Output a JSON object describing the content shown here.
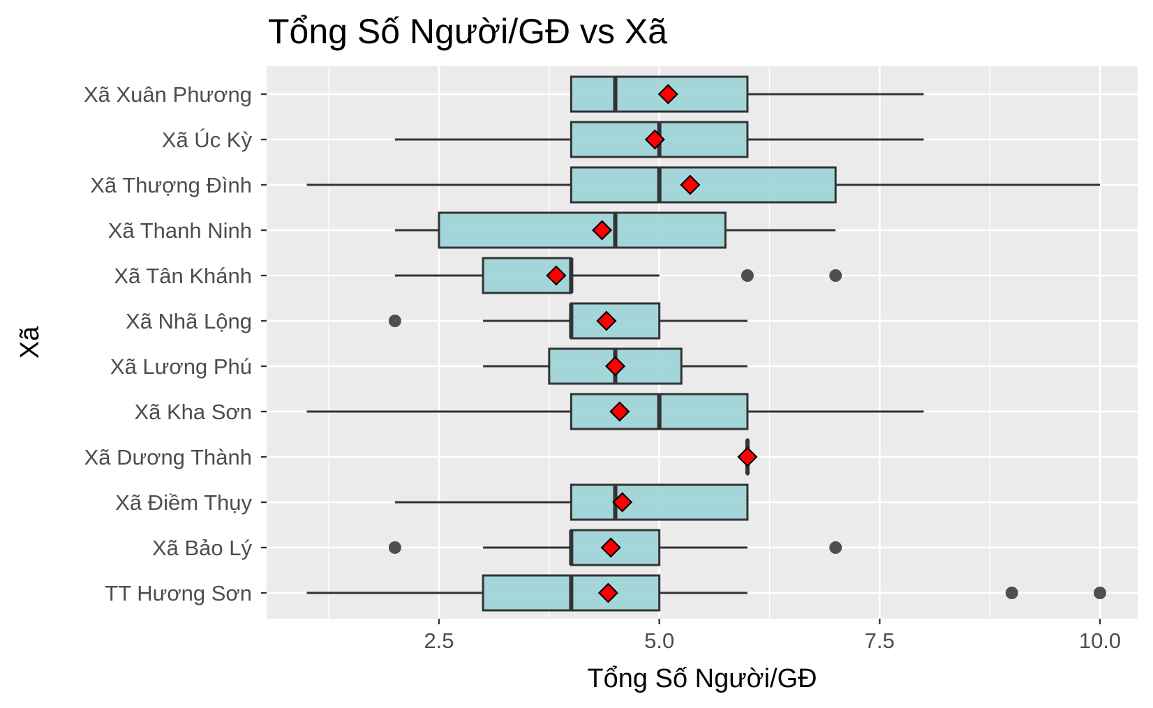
{
  "chart_data": {
    "type": "boxplot",
    "orientation": "horizontal",
    "title": "Tổng Số Người/GĐ vs Xã",
    "xlabel": "Tổng Số Người/GĐ",
    "ylabel": "Xã",
    "xlim": [
      0.6,
      10.45
    ],
    "x_ticks": [
      2.5,
      5.0,
      7.5,
      10.0
    ],
    "x_tick_labels": [
      "2.5",
      "5.0",
      "7.5",
      "10.0"
    ],
    "x_minor_ticks": [
      1.25,
      3.75,
      6.25,
      8.75
    ],
    "grid": true,
    "legend": "none",
    "colors": {
      "panel_background": "#ebebeb",
      "grid": "#ffffff",
      "box_fill": "#9fd4d8",
      "box_stroke": "#333333",
      "mean_marker": "#ff0000",
      "outlier": "#333333"
    },
    "categories": [
      {
        "label": "Xã Xuân Phương",
        "whisker_low": 4,
        "q1": 4,
        "median": 4.5,
        "q3": 6,
        "whisker_high": 8,
        "mean": 5.1,
        "outliers": []
      },
      {
        "label": "Xã Úc Kỳ",
        "whisker_low": 2,
        "q1": 4,
        "median": 5,
        "q3": 6,
        "whisker_high": 8,
        "mean": 4.95,
        "outliers": []
      },
      {
        "label": "Xã Thượng Đình",
        "whisker_low": 1,
        "q1": 4,
        "median": 5,
        "q3": 7,
        "whisker_high": 10,
        "mean": 5.35,
        "outliers": []
      },
      {
        "label": "Xã Thanh Ninh",
        "whisker_low": 2,
        "q1": 2.5,
        "median": 4.5,
        "q3": 5.75,
        "whisker_high": 7,
        "mean": 4.35,
        "outliers": []
      },
      {
        "label": "Xã Tân Khánh",
        "whisker_low": 2,
        "q1": 3,
        "median": 4,
        "q3": 4,
        "whisker_high": 5,
        "mean": 3.83,
        "outliers": [
          6,
          7
        ]
      },
      {
        "label": "Xã Nhã Lộng",
        "whisker_low": 3,
        "q1": 4,
        "median": 4,
        "q3": 5,
        "whisker_high": 6,
        "mean": 4.4,
        "outliers": [
          2
        ]
      },
      {
        "label": "Xã Lương Phú",
        "whisker_low": 3,
        "q1": 3.75,
        "median": 4.5,
        "q3": 5.25,
        "whisker_high": 6,
        "mean": 4.5,
        "outliers": []
      },
      {
        "label": "Xã Kha Sơn",
        "whisker_low": 1,
        "q1": 4,
        "median": 5,
        "q3": 6,
        "whisker_high": 8,
        "mean": 4.55,
        "outliers": []
      },
      {
        "label": "Xã Dương Thành",
        "whisker_low": 6,
        "q1": 6,
        "median": 6,
        "q3": 6,
        "whisker_high": 6,
        "mean": 6,
        "outliers": []
      },
      {
        "label": "Xã Điềm Thụy",
        "whisker_low": 2,
        "q1": 4,
        "median": 4.5,
        "q3": 6,
        "whisker_high": 6,
        "mean": 4.58,
        "outliers": []
      },
      {
        "label": "Xã Bảo Lý",
        "whisker_low": 3,
        "q1": 4,
        "median": 4,
        "q3": 5,
        "whisker_high": 6,
        "mean": 4.45,
        "outliers": [
          2,
          7
        ]
      },
      {
        "label": "TT Hương Sơn",
        "whisker_low": 1,
        "q1": 3,
        "median": 4,
        "q3": 5,
        "whisker_high": 6,
        "mean": 4.42,
        "outliers": [
          9,
          10
        ]
      }
    ]
  }
}
